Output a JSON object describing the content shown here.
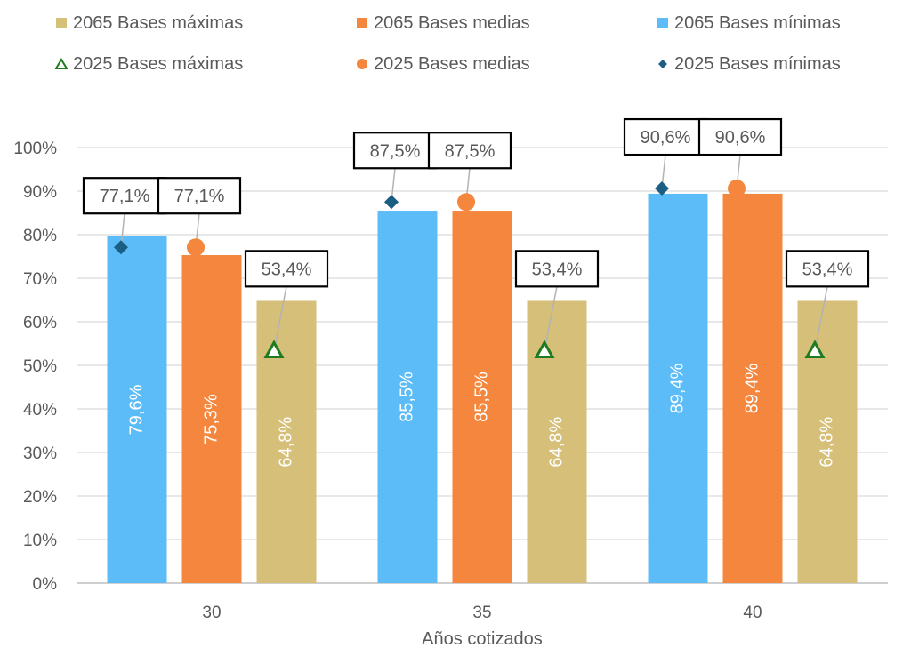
{
  "chart_data": {
    "type": "bar",
    "categories": [
      "30",
      "35",
      "40"
    ],
    "xlabel": "Años cotizados",
    "ylabel": "",
    "ylim": [
      0,
      100
    ],
    "y_ticks": [
      "0%",
      "10%",
      "20%",
      "30%",
      "40%",
      "50%",
      "60%",
      "70%",
      "80%",
      "90%",
      "100%"
    ],
    "grid": true,
    "legend_position": "top",
    "series": [
      {
        "name": "2065 Bases mínimas",
        "kind": "bar",
        "color": "#5BBCF8",
        "values": [
          79.6,
          85.5,
          89.4
        ],
        "labels": [
          "79,6%",
          "85,5%",
          "89,4%"
        ]
      },
      {
        "name": "2065 Bases medias",
        "kind": "bar",
        "color": "#F4873D",
        "values": [
          75.3,
          85.5,
          89.4
        ],
        "labels": [
          "75,3%",
          "85,5%",
          "89,4%"
        ]
      },
      {
        "name": "2065 Bases máximas",
        "kind": "bar",
        "color": "#D6BF78",
        "values": [
          64.8,
          64.8,
          64.8
        ],
        "labels": [
          "64,8%",
          "64,8%",
          "64,8%"
        ]
      },
      {
        "name": "2025 Bases mínimas",
        "kind": "marker",
        "marker": "diamond",
        "color": "#1B5E83",
        "values": [
          77.1,
          87.5,
          90.6
        ],
        "labels": [
          "77,1%",
          "87,5%",
          "90,6%"
        ]
      },
      {
        "name": "2025 Bases medias",
        "kind": "marker",
        "marker": "circle",
        "color": "#F4873D",
        "values": [
          77.1,
          87.5,
          90.6
        ],
        "labels": [
          "77,1%",
          "87,5%",
          "90,6%"
        ]
      },
      {
        "name": "2025 Bases máximas",
        "kind": "marker",
        "marker": "triangle",
        "color": "#1E7B1E",
        "values": [
          53.4,
          53.4,
          53.4
        ],
        "labels": [
          "53,4%",
          "53,4%",
          "53,4%"
        ]
      }
    ]
  },
  "legend": {
    "items": [
      {
        "label": "2065 Bases máximas",
        "marker": "square",
        "color": "#D6BF78"
      },
      {
        "label": "2065 Bases medias",
        "marker": "square",
        "color": "#F4873D"
      },
      {
        "label": "2065 Bases mínimas",
        "marker": "square",
        "color": "#5BBCF8"
      },
      {
        "label": "2025 Bases máximas",
        "marker": "triangle",
        "color": "#1E7B1E"
      },
      {
        "label": "2025 Bases medias",
        "marker": "circle",
        "color": "#F4873D"
      },
      {
        "label": "2025 Bases mínimas",
        "marker": "diamond",
        "color": "#1B5E83"
      }
    ]
  }
}
